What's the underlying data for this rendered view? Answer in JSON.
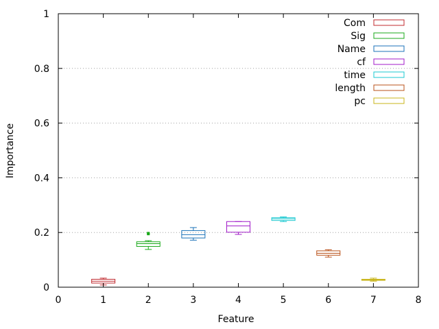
{
  "chart_data": {
    "type": "box",
    "xlabel": "Feature",
    "ylabel": "Importance",
    "xlim": [
      0,
      8
    ],
    "ylim": [
      0,
      1
    ],
    "xticks": [
      "0",
      "1",
      "2",
      "3",
      "4",
      "5",
      "6",
      "7",
      "8"
    ],
    "yticks": [
      "0",
      "0.2",
      "0.4",
      "0.6",
      "0.8",
      "1"
    ],
    "grid": "horizontal-dotted",
    "legend_position": "top-right",
    "series": [
      {
        "name": "Com",
        "x": 1,
        "min": 0.008,
        "q1": 0.015,
        "median": 0.022,
        "q3": 0.029,
        "max": 0.033,
        "outliers": [],
        "color": "#c0282d"
      },
      {
        "name": "Sig",
        "x": 2,
        "min": 0.138,
        "q1": 0.149,
        "median": 0.159,
        "q3": 0.166,
        "max": 0.17,
        "outliers": [
          0.195,
          0.197
        ],
        "color": "#18a818"
      },
      {
        "name": "Name",
        "x": 3,
        "min": 0.172,
        "q1": 0.18,
        "median": 0.192,
        "q3": 0.207,
        "max": 0.218,
        "outliers": [],
        "color": "#1870b8"
      },
      {
        "name": "cf",
        "x": 4,
        "min": 0.193,
        "q1": 0.201,
        "median": 0.224,
        "q3": 0.24,
        "max": 0.24,
        "outliers": [],
        "color": "#a018c8"
      },
      {
        "name": "time",
        "x": 5,
        "min": 0.24,
        "q1": 0.244,
        "median": 0.25,
        "q3": 0.254,
        "max": 0.257,
        "outliers": [],
        "color": "#18c8d0"
      },
      {
        "name": "length",
        "x": 6,
        "min": 0.11,
        "q1": 0.117,
        "median": 0.124,
        "q3": 0.133,
        "max": 0.137,
        "outliers": [],
        "color": "#b85018"
      },
      {
        "name": "pc",
        "x": 7,
        "min": 0.022,
        "q1": 0.025,
        "median": 0.027,
        "q3": 0.029,
        "max": 0.033,
        "outliers": [],
        "color": "#c8b418"
      }
    ]
  }
}
